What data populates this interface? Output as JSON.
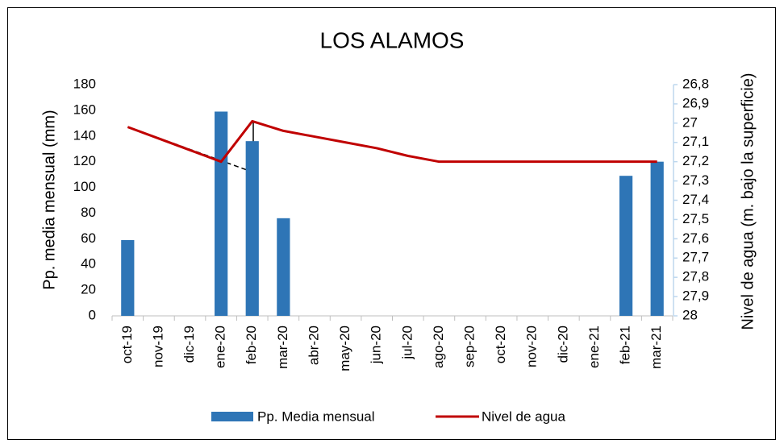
{
  "chart_data": {
    "type": "bar_line",
    "title": "LOS ALAMOS",
    "y_label": "Pp. media mensual (mm)",
    "y2_label": "Nivel de agua (m. bajo la superficie)",
    "categories": [
      "oct-19",
      "nov-19",
      "dic-19",
      "ene-20",
      "feb-20",
      "mar-20",
      "abr-20",
      "may-20",
      "jun-20",
      "jul-20",
      "ago-20",
      "sep-20",
      "oct-20",
      "nov-20",
      "dic-20",
      "ene-21",
      "feb-21",
      "mar-21"
    ],
    "series": [
      {
        "name": "Pp. Media mensual",
        "color": "#2e75b6",
        "type": "bar",
        "values": [
          59,
          null,
          null,
          159,
          136,
          76,
          null,
          null,
          null,
          null,
          null,
          null,
          null,
          null,
          null,
          null,
          109,
          120
        ]
      },
      {
        "name": "Nivel de agua",
        "color": "#c00000",
        "type": "line",
        "axis": "y2",
        "values": [
          27.02,
          27.08,
          27.14,
          27.2,
          26.99,
          27.04,
          27.07,
          27.1,
          27.13,
          27.17,
          27.2,
          27.2,
          27.2,
          27.2,
          27.2,
          27.2,
          27.2,
          27.2
        ]
      }
    ],
    "annotation": "1",
    "ylim": [
      0,
      180
    ],
    "yticks": [
      0,
      20,
      40,
      60,
      80,
      100,
      120,
      140,
      160,
      180
    ],
    "y2lim": [
      26.8,
      28
    ],
    "y2_inverted": true,
    "y2ticks": [
      {
        "value": 26.8,
        "label": "26,8"
      },
      {
        "value": 26.9,
        "label": "26,9"
      },
      27,
      {
        "value": 27.1,
        "label": "27,1"
      },
      {
        "value": 27.2,
        "label": "27,2"
      },
      {
        "value": 27.3,
        "label": "27,3"
      },
      {
        "value": 27.4,
        "label": "27,4"
      },
      {
        "value": 27.5,
        "label": "27,5"
      },
      {
        "value": 27.6,
        "label": "27,6"
      },
      {
        "value": 27.7,
        "label": "27,7"
      },
      {
        "value": 27.8,
        "label": "27,8"
      },
      {
        "value": 27.9,
        "label": "27,9"
      },
      28
    ],
    "legend": "bottom",
    "grid": false
  }
}
